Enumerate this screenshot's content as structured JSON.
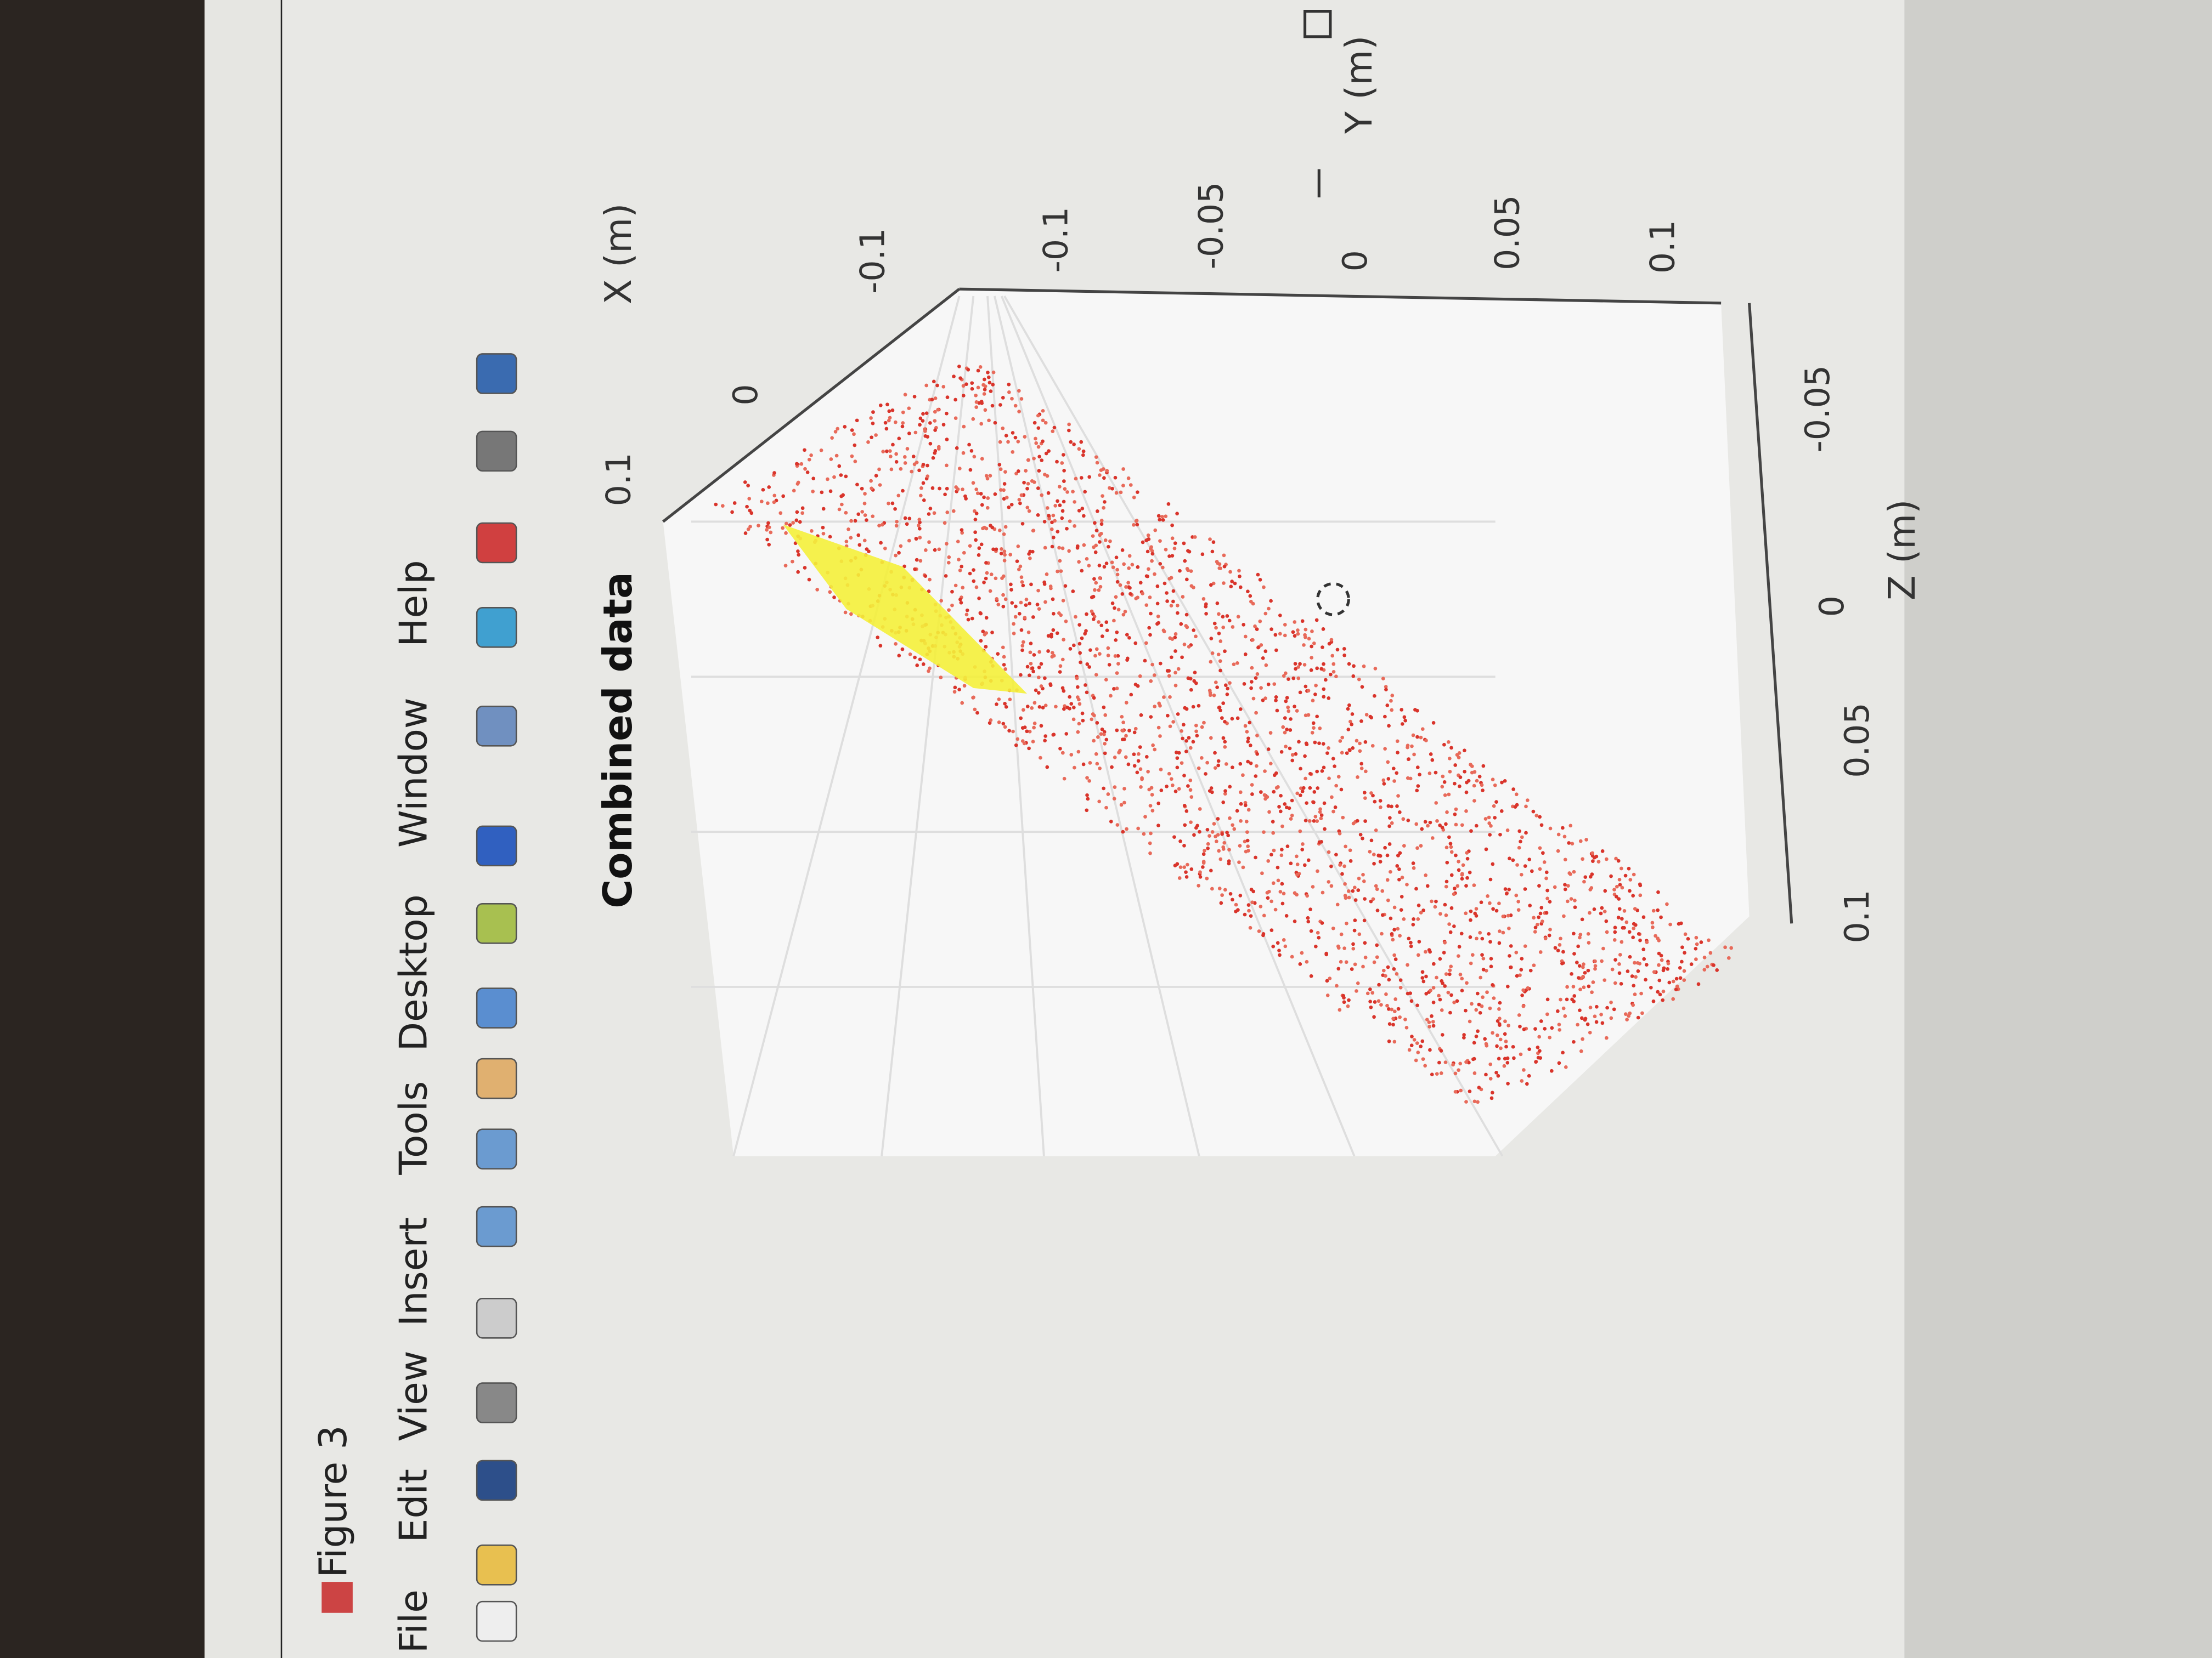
{
  "window": {
    "title": "Figure 3"
  },
  "menu": [
    "File",
    "Edit",
    "View",
    "Insert",
    "Tools",
    "Desktop",
    "Window",
    "Help"
  ],
  "plot": {
    "title": "Combined data",
    "x_axis": {
      "label": "X (m)",
      "ticks": [
        "0.1",
        "0",
        "-0.1"
      ]
    },
    "y_axis": {
      "label": "Y (m)",
      "ticks": [
        "-0.1",
        "-0.05",
        "0",
        "0.05",
        "0.1"
      ]
    },
    "z_axis": {
      "label": "Z (m)",
      "ticks": [
        "0.1",
        "0.05",
        "0",
        "-0.05"
      ]
    }
  }
}
